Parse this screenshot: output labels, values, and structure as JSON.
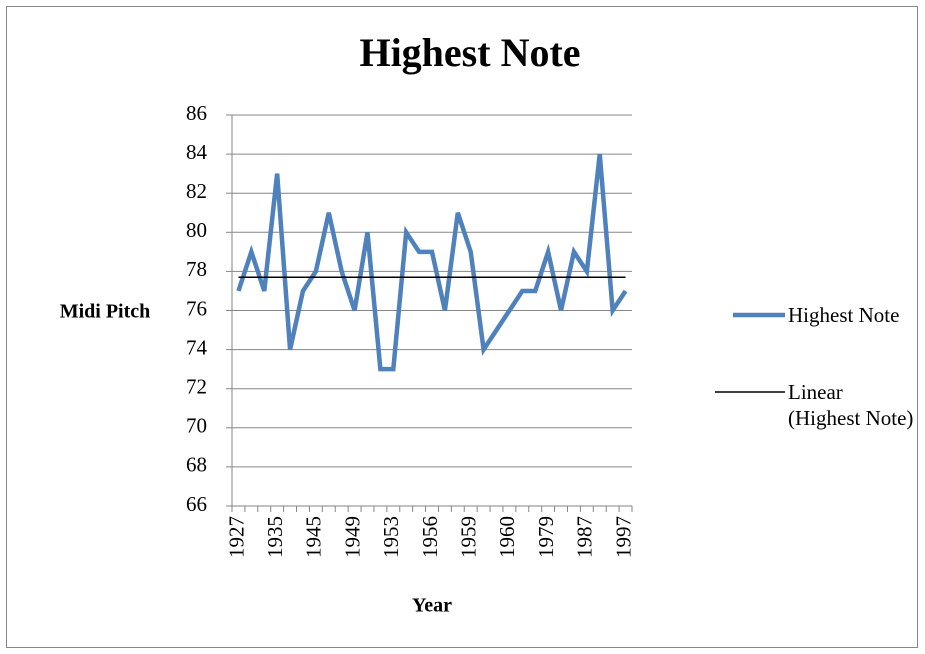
{
  "chart_data": {
    "type": "line",
    "title": "Highest Note",
    "x_label": "Year",
    "y_label": "Midi Pitch",
    "categories": [
      "1927",
      null,
      null,
      "1935",
      null,
      null,
      "1945",
      null,
      null,
      "1949",
      null,
      null,
      "1953",
      null,
      null,
      "1956",
      null,
      null,
      "1959",
      null,
      null,
      "1960",
      null,
      null,
      "1979",
      null,
      null,
      "1987",
      null,
      null,
      "1997"
    ],
    "series": [
      {
        "name": "Highest Note",
        "color": "#4f81bd",
        "values": [
          77,
          79,
          77,
          83,
          74,
          77,
          78,
          81,
          78,
          76,
          80,
          73,
          73,
          80,
          79,
          79,
          76,
          81,
          79,
          74,
          75,
          76,
          77,
          77,
          79,
          76,
          79,
          78,
          84,
          76,
          77
        ]
      }
    ],
    "trendline": {
      "name": "Linear (Highest Note)",
      "color": "#000000",
      "values": [
        77.7,
        77.7
      ]
    },
    "ylim": [
      66,
      86
    ],
    "yticks": [
      66,
      68,
      70,
      72,
      74,
      76,
      78,
      80,
      82,
      84,
      86
    ],
    "grid": true
  }
}
